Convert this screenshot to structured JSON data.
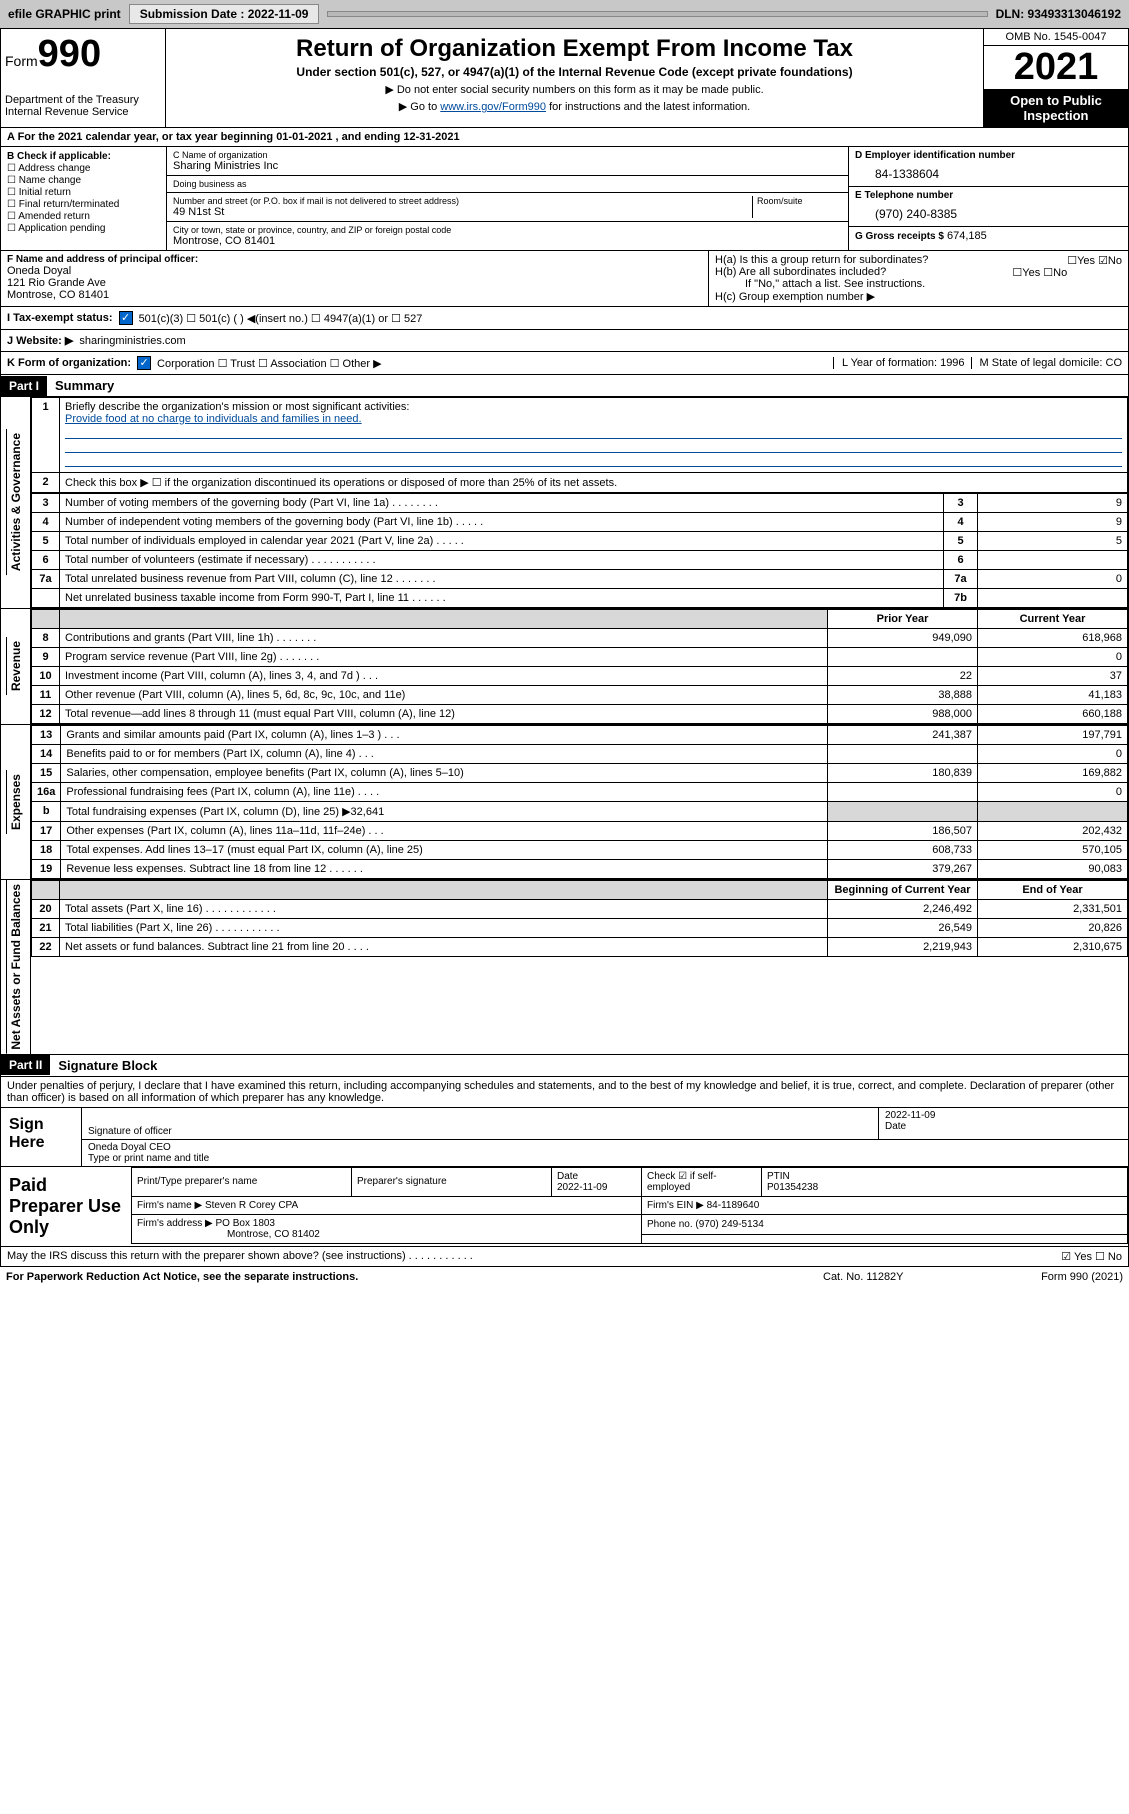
{
  "topbar": {
    "efile": "efile GRAPHIC print",
    "subdate_lbl": "Submission Date : 2022-11-09",
    "dln": "DLN: 93493313046192"
  },
  "header": {
    "form_word": "Form",
    "form_num": "990",
    "dept": "Department of the Treasury",
    "irs": "Internal Revenue Service",
    "title": "Return of Organization Exempt From Income Tax",
    "sub": "Under section 501(c), 527, or 4947(a)(1) of the Internal Revenue Code (except private foundations)",
    "note1": "▶ Do not enter social security numbers on this form as it may be made public.",
    "note2_pre": "▶ Go to ",
    "note2_link": "www.irs.gov/Form990",
    "note2_post": " for instructions and the latest information.",
    "omb": "OMB No. 1545-0047",
    "year": "2021",
    "open": "Open to Public Inspection"
  },
  "rowA": "A For the 2021 calendar year, or tax year beginning 01-01-2021   , and ending 12-31-2021",
  "B": {
    "lbl": "B Check if applicable:",
    "opts": [
      "☐ Address change",
      "☐ Name change",
      "☐ Initial return",
      "☐ Final return/terminated",
      "☐ Amended return",
      "☐ Application pending"
    ]
  },
  "C": {
    "name_lbl": "C Name of organization",
    "name": "Sharing Ministries Inc",
    "dba_lbl": "Doing business as",
    "dba": "",
    "street_lbl": "Number and street (or P.O. box if mail is not delivered to street address)",
    "room_lbl": "Room/suite",
    "street": "49 N1st St",
    "city_lbl": "City or town, state or province, country, and ZIP or foreign postal code",
    "city": "Montrose, CO  81401"
  },
  "D": {
    "lbl": "D Employer identification number",
    "val": "84-1338604"
  },
  "E": {
    "lbl": "E Telephone number",
    "val": "(970) 240-8385"
  },
  "G": {
    "lbl": "G Gross receipts $",
    "val": "674,185"
  },
  "F": {
    "lbl": "F Name and address of principal officer:",
    "name": "Oneda Doyal",
    "addr1": "121 Rio Grande Ave",
    "addr2": "Montrose, CO  81401"
  },
  "H": {
    "a": "H(a)  Is this a group return for subordinates?",
    "a_ans": "☐Yes ☑No",
    "b": "H(b)  Are all subordinates included?",
    "b_ans": "☐Yes ☐No",
    "b_note": "If \"No,\" attach a list. See instructions.",
    "c": "H(c)  Group exemption number ▶"
  },
  "I": {
    "lbl": "I   Tax-exempt status:",
    "opts": "501(c)(3)     ☐  501(c) (  ) ◀(insert no.)     ☐  4947(a)(1) or  ☐  527"
  },
  "J": {
    "lbl": "J   Website: ▶",
    "val": "sharingministries.com"
  },
  "K": {
    "lbl": "K Form of organization:",
    "opts": "Corporation  ☐ Trust  ☐ Association  ☐ Other ▶",
    "L": "L Year of formation: 1996",
    "M": "M State of legal domicile: CO"
  },
  "part1": {
    "label": "Part I",
    "title": "Summary"
  },
  "summary": {
    "q1_lbl": "Briefly describe the organization's mission or most significant activities:",
    "q1_val": "Provide food at no charge to individuals and families in need.",
    "q2": "Check this box ▶ ☐  if the organization discontinued its operations or disposed of more than 25% of its net assets.",
    "rows_top": [
      {
        "n": "3",
        "t": "Number of voting members of the governing body (Part VI, line 1a)  .   .   .   .   .   .   .   .",
        "box": "3",
        "v": "9"
      },
      {
        "n": "4",
        "t": "Number of independent voting members of the governing body (Part VI, line 1b)  .   .   .   .   .",
        "box": "4",
        "v": "9"
      },
      {
        "n": "5",
        "t": "Total number of individuals employed in calendar year 2021 (Part V, line 2a)  .   .   .   .   .",
        "box": "5",
        "v": "5"
      },
      {
        "n": "6",
        "t": "Total number of volunteers (estimate if necessary)  .   .   .   .   .   .   .   .   .   .   .",
        "box": "6",
        "v": ""
      },
      {
        "n": "7a",
        "t": "Total unrelated business revenue from Part VIII, column (C), line 12  .   .   .   .   .   .   .",
        "box": "7a",
        "v": "0"
      },
      {
        "n": "",
        "t": "Net unrelated business taxable income from Form 990-T, Part I, line 11  .   .   .   .   .   .",
        "box": "7b",
        "v": ""
      }
    ],
    "col_prior": "Prior Year",
    "col_current": "Current Year",
    "revenue": [
      {
        "n": "8",
        "t": "Contributions and grants (Part VIII, line 1h)  .   .   .   .   .   .   .",
        "p": "949,090",
        "c": "618,968"
      },
      {
        "n": "9",
        "t": "Program service revenue (Part VIII, line 2g)  .   .   .   .   .   .   .",
        "p": "",
        "c": "0"
      },
      {
        "n": "10",
        "t": "Investment income (Part VIII, column (A), lines 3, 4, and 7d )  .   .   .",
        "p": "22",
        "c": "37"
      },
      {
        "n": "11",
        "t": "Other revenue (Part VIII, column (A), lines 5, 6d, 8c, 9c, 10c, and 11e)",
        "p": "38,888",
        "c": "41,183"
      },
      {
        "n": "12",
        "t": "Total revenue—add lines 8 through 11 (must equal Part VIII, column (A), line 12)",
        "p": "988,000",
        "c": "660,188"
      }
    ],
    "expenses": [
      {
        "n": "13",
        "t": "Grants and similar amounts paid (Part IX, column (A), lines 1–3 )  .   .   .",
        "p": "241,387",
        "c": "197,791"
      },
      {
        "n": "14",
        "t": "Benefits paid to or for members (Part IX, column (A), line 4)  .   .   .",
        "p": "",
        "c": "0"
      },
      {
        "n": "15",
        "t": "Salaries, other compensation, employee benefits (Part IX, column (A), lines 5–10)",
        "p": "180,839",
        "c": "169,882"
      },
      {
        "n": "16a",
        "t": "Professional fundraising fees (Part IX, column (A), line 11e)  .   .   .   .",
        "p": "",
        "c": "0"
      },
      {
        "n": "b",
        "t": "Total fundraising expenses (Part IX, column (D), line 25) ▶32,641",
        "p": "__shade__",
        "c": "__shade__"
      },
      {
        "n": "17",
        "t": "Other expenses (Part IX, column (A), lines 11a–11d, 11f–24e)  .   .   .",
        "p": "186,507",
        "c": "202,432"
      },
      {
        "n": "18",
        "t": "Total expenses. Add lines 13–17 (must equal Part IX, column (A), line 25)",
        "p": "608,733",
        "c": "570,105"
      },
      {
        "n": "19",
        "t": "Revenue less expenses. Subtract line 18 from line 12  .   .   .   .   .   .",
        "p": "379,267",
        "c": "90,083"
      }
    ],
    "col_begin": "Beginning of Current Year",
    "col_end": "End of Year",
    "netassets": [
      {
        "n": "20",
        "t": "Total assets (Part X, line 16)  .   .   .   .   .   .   .   .   .   .   .   .",
        "p": "2,246,492",
        "c": "2,331,501"
      },
      {
        "n": "21",
        "t": "Total liabilities (Part X, line 26)  .   .   .   .   .   .   .   .   .   .   .",
        "p": "26,549",
        "c": "20,826"
      },
      {
        "n": "22",
        "t": "Net assets or fund balances. Subtract line 21 from line 20  .   .   .   .",
        "p": "2,219,943",
        "c": "2,310,675"
      }
    ]
  },
  "side_labels": {
    "gov": "Activities & Governance",
    "rev": "Revenue",
    "exp": "Expenses",
    "net": "Net Assets or Fund Balances"
  },
  "part2": {
    "label": "Part II",
    "title": "Signature Block"
  },
  "sig": {
    "penalty": "Under penalties of perjury, I declare that I have examined this return, including accompanying schedules and statements, and to the best of my knowledge and belief, it is true, correct, and complete. Declaration of preparer (other than officer) is based on all information of which preparer has any knowledge.",
    "sign_here": "Sign Here",
    "sig_officer": "Signature of officer",
    "date": "2022-11-09",
    "date_lbl": "Date",
    "name": "Oneda Doyal CEO",
    "name_lbl": "Type or print name and title"
  },
  "paid": {
    "label": "Paid Preparer Use Only",
    "h1": "Print/Type preparer's name",
    "h2": "Preparer's signature",
    "h3": "Date",
    "h3v": "2022-11-09",
    "h4": "Check ☑ if self-employed",
    "h5": "PTIN",
    "h5v": "P01354238",
    "firm_lbl": "Firm's name     ▶",
    "firm": "Steven R Corey CPA",
    "ein_lbl": "Firm's EIN ▶",
    "ein": "84-1189640",
    "addr_lbl": "Firm's address ▶",
    "addr1": "PO Box 1803",
    "addr2": "Montrose, CO  81402",
    "phone_lbl": "Phone no.",
    "phone": "(970) 249-5134"
  },
  "discuss": "May the IRS discuss this return with the preparer shown above? (see instructions)  .   .   .   .   .   .   .   .   .   .   .",
  "discuss_ans": "☑ Yes  ☐ No",
  "footer": {
    "l": "For Paperwork Reduction Act Notice, see the separate instructions.",
    "c": "Cat. No. 11282Y",
    "r": "Form 990 (2021)"
  }
}
